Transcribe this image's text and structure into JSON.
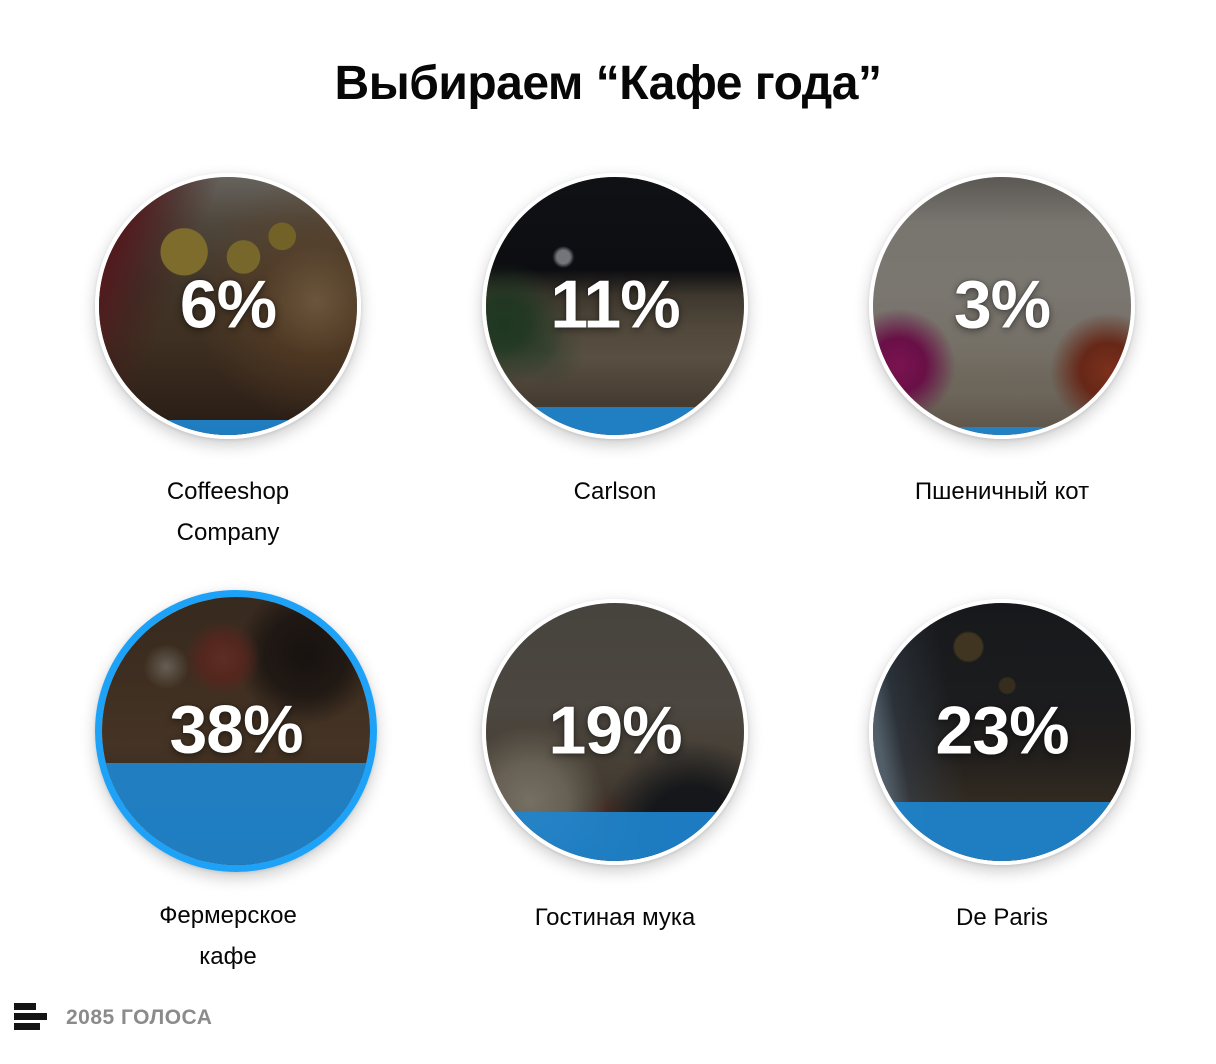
{
  "title": "Выбираем “Кафе года”",
  "poll": {
    "options": [
      {
        "name": "Coffeeshop Company",
        "percent": 6,
        "percent_label": "6%",
        "selected": false
      },
      {
        "name": "Carlson",
        "percent": 11,
        "percent_label": "11%",
        "selected": false
      },
      {
        "name": "Пшеничный кот",
        "percent": 3,
        "percent_label": "3%",
        "selected": false
      },
      {
        "name": "Фермерское кафе",
        "percent": 38,
        "percent_label": "38%",
        "selected": true
      },
      {
        "name": "Гостиная мука",
        "percent": 19,
        "percent_label": "19%",
        "selected": false
      },
      {
        "name": "De Paris",
        "percent": 23,
        "percent_label": "23%",
        "selected": false
      }
    ],
    "total_votes_label": "2085 ГОЛОСА"
  },
  "icons": {
    "footer": "poll-results-icon"
  },
  "colors": {
    "fill_blue": "#1E84CD",
    "selected_border": "#1DA2F8",
    "votes_text": "#8B8B8B"
  },
  "chart_data": {
    "type": "bar",
    "title": "Выбираем “Кафе года”",
    "categories": [
      "Coffeeshop Company",
      "Carlson",
      "Пшеничный кот",
      "Фермерское кафе",
      "Гостиная мука",
      "De Paris"
    ],
    "values": [
      6,
      11,
      3,
      38,
      19,
      23
    ],
    "unit": "%",
    "total_votes": 2085
  }
}
